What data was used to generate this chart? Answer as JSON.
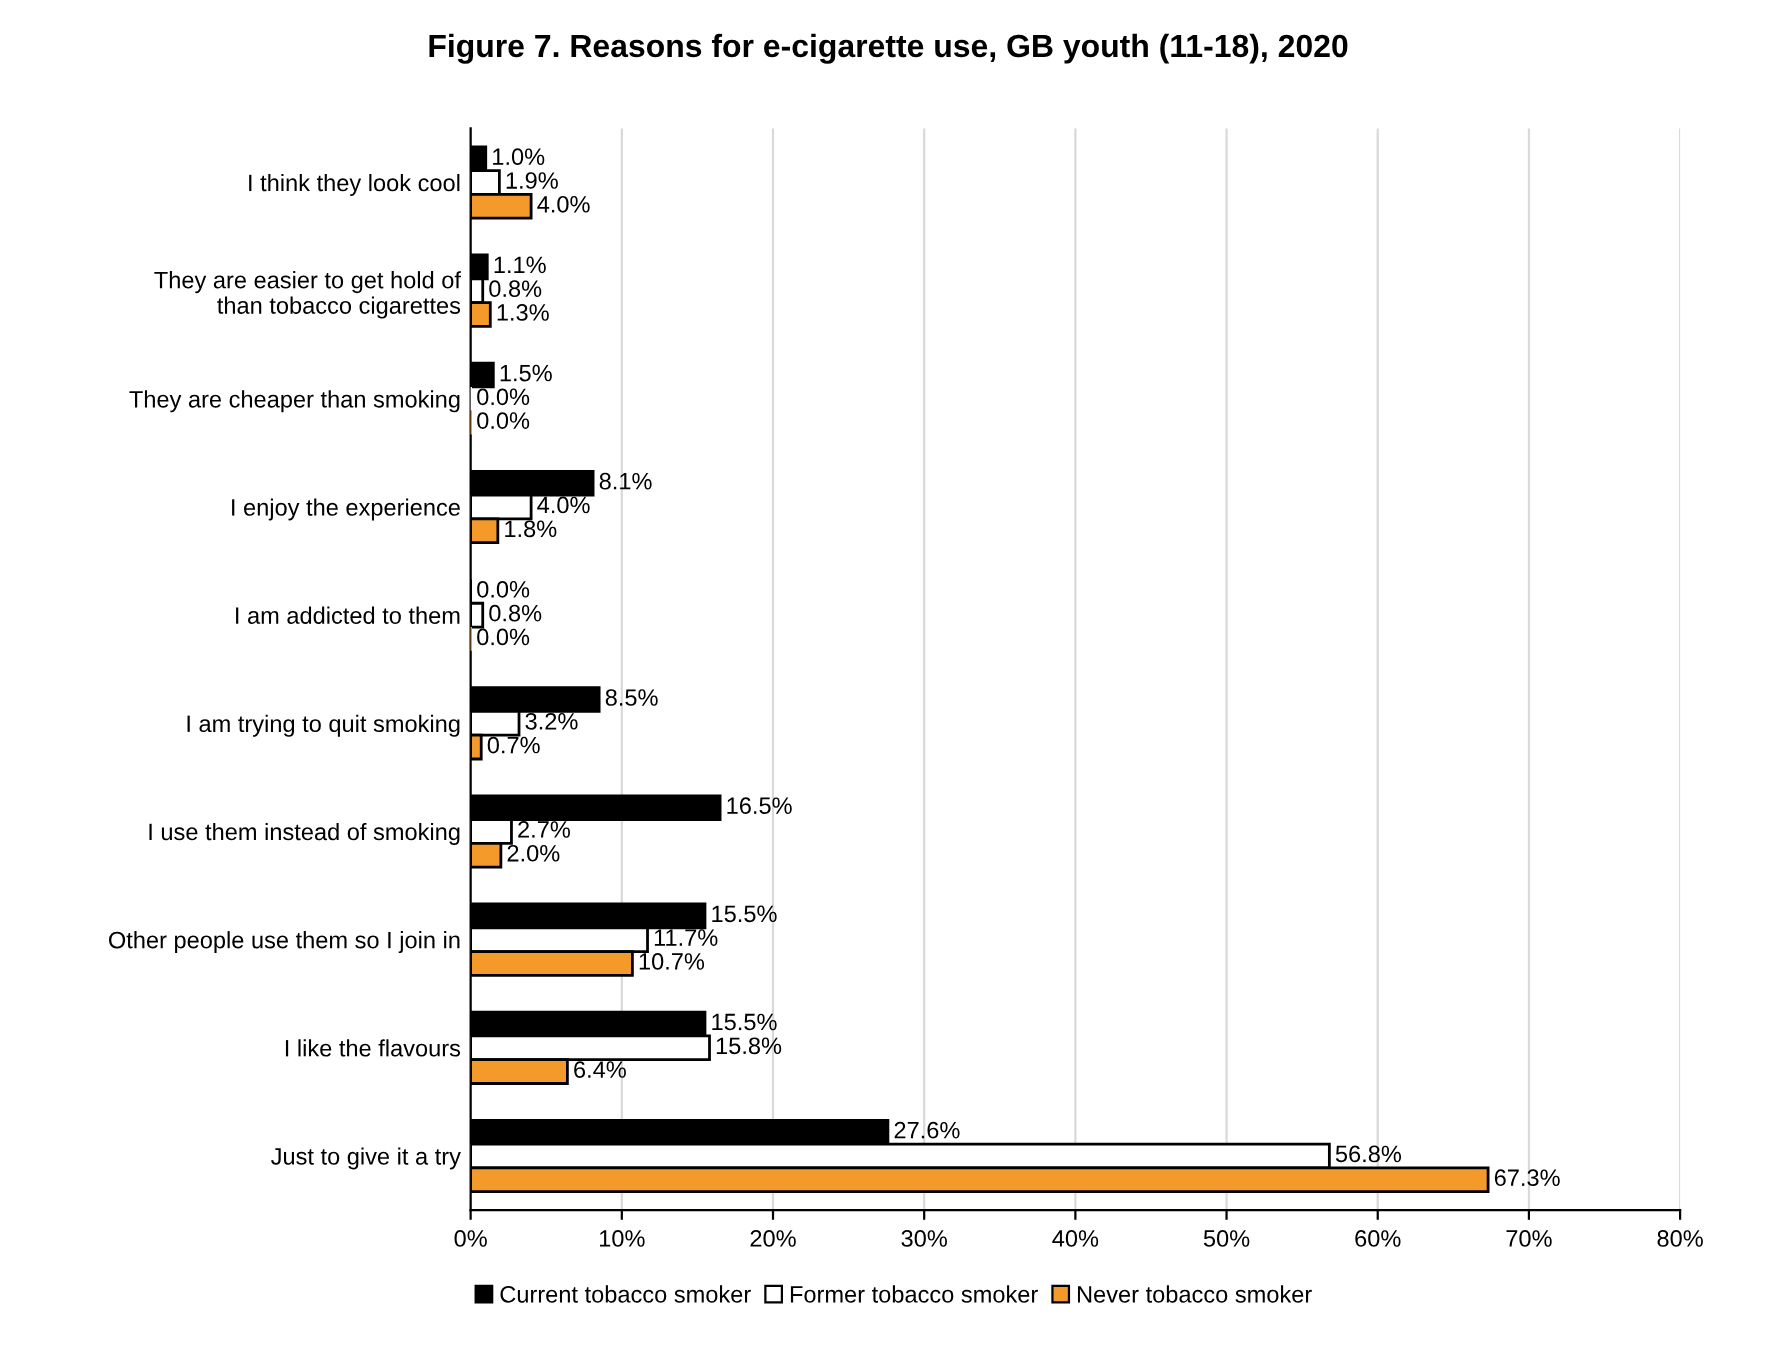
{
  "chart_data": {
    "type": "bar",
    "orientation": "horizontal",
    "title": "Figure 7. Reasons for e-cigarette use, GB youth (11-18), 2020",
    "categories": [
      "I think they look cool",
      "They are easier to get hold of\nthan tobacco cigarettes",
      "They are cheaper than smoking",
      "I enjoy the experience",
      "I am addicted to them",
      "I am trying to quit smoking",
      "I use them instead of smoking",
      "Other people use them so I join in",
      "I like the flavours",
      "Just to give it a try"
    ],
    "series": [
      {
        "name": "Current tobacco smoker",
        "color": "#000000",
        "values": [
          1.0,
          1.1,
          1.5,
          8.1,
          0.0,
          8.5,
          16.5,
          15.5,
          15.5,
          27.6
        ],
        "value_labels": [
          "1.0%",
          "1.1%",
          "1.5%",
          "8.1%",
          "0.0%",
          "8.5%",
          "16.5%",
          "15.5%",
          "15.5%",
          "27.6%"
        ]
      },
      {
        "name": "Former tobacco smoker",
        "color": "#ffffff",
        "values": [
          1.9,
          0.8,
          0.0,
          4.0,
          0.8,
          3.2,
          2.7,
          11.7,
          15.8,
          56.8
        ],
        "value_labels": [
          "1.9%",
          "0.8%",
          "0.0%",
          "4.0%",
          "0.8%",
          "3.2%",
          "2.7%",
          "11.7%",
          "15.8%",
          "56.8%"
        ]
      },
      {
        "name": "Never tobacco smoker",
        "color": "#f39a2b",
        "values": [
          4.0,
          1.3,
          0.0,
          1.8,
          0.0,
          0.7,
          2.0,
          10.7,
          6.4,
          67.3
        ],
        "value_labels": [
          "4.0%",
          "1.3%",
          "0.0%",
          "1.8%",
          "0.0%",
          "0.7%",
          "2.0%",
          "10.7%",
          "6.4%",
          "67.3%"
        ]
      }
    ],
    "xlim": [
      0,
      80
    ],
    "xticks": [
      {
        "value": 0,
        "label": "0%"
      },
      {
        "value": 10,
        "label": "10%"
      },
      {
        "value": 20,
        "label": "20%"
      },
      {
        "value": 30,
        "label": "30%"
      },
      {
        "value": 40,
        "label": "40%"
      },
      {
        "value": 50,
        "label": "50%"
      },
      {
        "value": 60,
        "label": "60%"
      },
      {
        "value": 70,
        "label": "70%"
      },
      {
        "value": 80,
        "label": "80%"
      }
    ],
    "grid": "x",
    "legend": "bottom"
  }
}
